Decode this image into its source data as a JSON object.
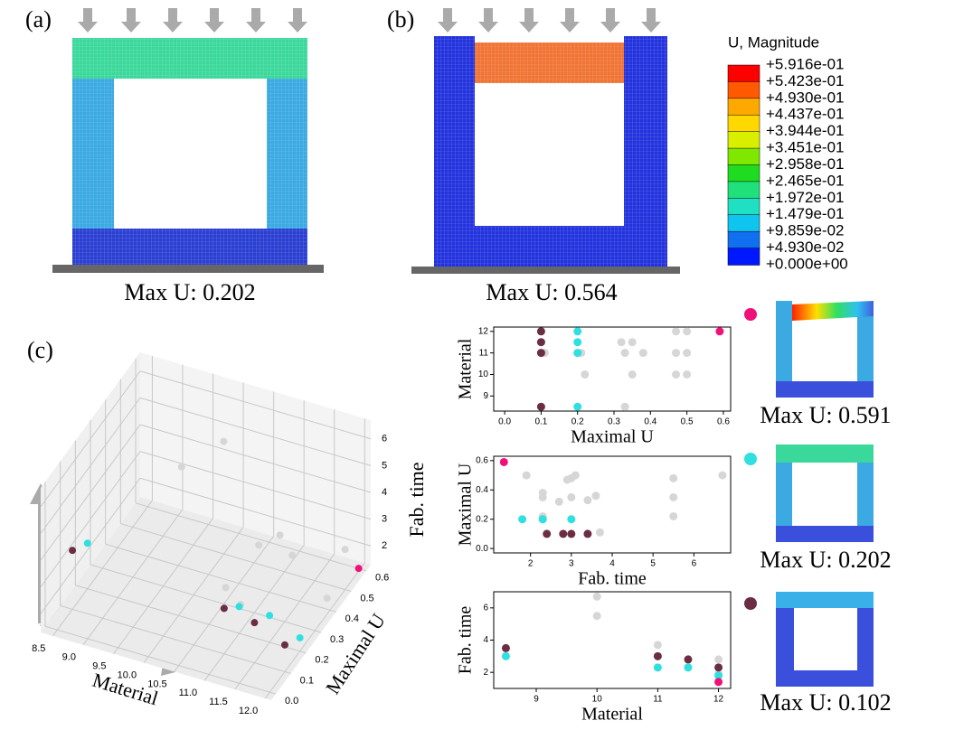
{
  "panels": {
    "a": {
      "label": "(a)",
      "caption": "Max U: 0.202"
    },
    "b": {
      "label": "(b)",
      "caption": "Max U: 0.564"
    },
    "c": {
      "label": "(c)"
    },
    "colorbar": {
      "title": "U, Magnitude",
      "labels": [
        "+5.916e-01",
        "+5.423e-01",
        "+4.930e-01",
        "+4.437e-01",
        "+3.944e-01",
        "+3.451e-01",
        "+2.958e-01",
        "+2.465e-01",
        "+1.972e-01",
        "+1.479e-01",
        "+9.859e-02",
        "+4.930e-02",
        "+0.000e+00"
      ]
    },
    "examples": [
      {
        "caption": "Max U: 0.591"
      },
      {
        "caption": "Max U: 0.202"
      },
      {
        "caption": "Max U: 0.102"
      }
    ]
  },
  "chart_data": [
    {
      "type": "scatter",
      "xlabel": "Maximal U",
      "ylabel": "Material",
      "xlim": [
        -0.03,
        0.62
      ],
      "ylim": [
        8.3,
        12.2
      ],
      "xticks": [
        {
          "value": 0,
          "label": "0.0"
        },
        0.1,
        0.2,
        0.3,
        0.4,
        0.5,
        0.6
      ],
      "yticks": [
        9,
        10,
        11,
        12
      ],
      "series": [
        {
          "color": "#d6d6d6",
          "x": [
            0.11,
            0.21,
            0.22,
            0.32,
            0.33,
            0.33,
            0.35,
            0.35,
            0.38,
            0.47,
            0.47,
            0.47,
            0.5,
            0.5,
            0.5
          ],
          "values": [
            11,
            11,
            10,
            11.5,
            11,
            8.5,
            11.5,
            10,
            11,
            12,
            11,
            10,
            12,
            11,
            10
          ]
        },
        {
          "color": "#6b2d43",
          "x": [
            0.1,
            0.1,
            0.1,
            0.1
          ],
          "values": [
            12,
            11.5,
            11,
            8.5
          ]
        },
        {
          "color": "#30e0e0",
          "x": [
            0.2,
            0.2,
            0.2,
            0.2
          ],
          "values": [
            12,
            11.5,
            11,
            8.5
          ]
        },
        {
          "color": "#f0107a",
          "x": [
            0.59
          ],
          "values": [
            12
          ]
        }
      ]
    },
    {
      "type": "scatter",
      "xlabel": "Fab. time",
      "ylabel": "Maximal U",
      "xlim": [
        1.1,
        6.9
      ],
      "ylim": [
        -0.03,
        0.63
      ],
      "xticks": [
        2,
        3,
        4,
        5,
        6
      ],
      "yticks": [
        {
          "value": 0,
          "label": "0.0"
        },
        0.2,
        0.4,
        0.6
      ],
      "series": [
        {
          "color": "#d6d6d6",
          "x": [
            1.9,
            2.3,
            2.3,
            2.3,
            2.7,
            2.9,
            3.0,
            3.1,
            3.0,
            3.4,
            3.6,
            3.7,
            5.5,
            5.5,
            5.5,
            6.7
          ],
          "values": [
            0.5,
            0.38,
            0.35,
            0.22,
            0.32,
            0.47,
            0.48,
            0.5,
            0.35,
            0.33,
            0.36,
            0.11,
            0.48,
            0.35,
            0.22,
            0.5
          ]
        },
        {
          "color": "#6b2d43",
          "x": [
            2.4,
            2.8,
            3.0,
            3.4
          ],
          "values": [
            0.1,
            0.1,
            0.1,
            0.1
          ]
        },
        {
          "color": "#30e0e0",
          "x": [
            1.8,
            2.3,
            2.3,
            3.0
          ],
          "values": [
            0.2,
            0.2,
            0.2,
            0.2
          ]
        },
        {
          "color": "#f0107a",
          "x": [
            1.35
          ],
          "values": [
            0.59
          ]
        }
      ]
    },
    {
      "type": "scatter",
      "xlabel": "Material",
      "ylabel": "Fab. time",
      "xlim": [
        8.3,
        12.2
      ],
      "ylim": [
        1,
        7
      ],
      "xticks": [
        9,
        10,
        11,
        12
      ],
      "yticks": [
        2,
        4,
        6
      ],
      "series": [
        {
          "color": "#d6d6d6",
          "x": [
            10,
            10,
            11,
            12,
            12
          ],
          "values": [
            6.7,
            5.5,
            3.7,
            2.8,
            1.9
          ]
        },
        {
          "color": "#6b2d43",
          "x": [
            8.5,
            11,
            11.5,
            12
          ],
          "values": [
            3.5,
            3.0,
            2.8,
            2.3
          ]
        },
        {
          "color": "#30e0e0",
          "x": [
            8.5,
            11,
            11.5,
            12
          ],
          "values": [
            3.0,
            2.3,
            2.3,
            1.8
          ]
        },
        {
          "color": "#f0107a",
          "x": [
            12
          ],
          "values": [
            1.4
          ]
        }
      ]
    },
    {
      "type": "scatter3d",
      "xlabel": "Material",
      "ylabel": "Maximal U",
      "zlabel": "Fab. time",
      "xlim": [
        8.3,
        12.1
      ],
      "ylim": [
        -0.03,
        0.63
      ],
      "zlim": [
        1.3,
        6.7
      ],
      "xticks": [
        8.5,
        {
          "value": 9,
          "label": "9.0"
        },
        9.5,
        {
          "value": 10,
          "label": "10.0"
        },
        10.5,
        {
          "value": 11,
          "label": "11.0"
        },
        11.5,
        {
          "value": 12,
          "label": "12.0"
        }
      ],
      "yticks": [
        {
          "value": 0,
          "label": "0.0"
        },
        0.1,
        0.2,
        0.3,
        0.4,
        0.5,
        0.6
      ],
      "zticks": [
        2,
        3,
        4,
        5,
        6
      ],
      "series": [
        {
          "color": "#d6d6d6",
          "x": [
            10,
            10,
            11,
            11,
            11.5,
            11,
            12,
            12,
            11
          ],
          "y": [
            0.22,
            0.5,
            0.11,
            0.33,
            0.35,
            0.47,
            0.5,
            0.38,
            0.21
          ],
          "values": [
            6.7,
            5.5,
            3.7,
            3.6,
            3.4,
            2.9,
            2.8,
            1.9,
            2.3
          ]
        },
        {
          "color": "#6b2d43",
          "x": [
            8.5,
            11,
            11.5,
            12
          ],
          "y": [
            0.1,
            0.1,
            0.1,
            0.1
          ],
          "values": [
            3.5,
            3.0,
            2.8,
            2.3
          ]
        },
        {
          "color": "#30e0e0",
          "x": [
            8.5,
            11,
            11.5,
            12
          ],
          "y": [
            0.2,
            0.2,
            0.2,
            0.2
          ],
          "values": [
            3.0,
            2.3,
            2.3,
            1.8
          ]
        },
        {
          "color": "#f0107a",
          "x": [
            12
          ],
          "y": [
            0.59
          ],
          "values": [
            1.4
          ]
        }
      ]
    }
  ]
}
